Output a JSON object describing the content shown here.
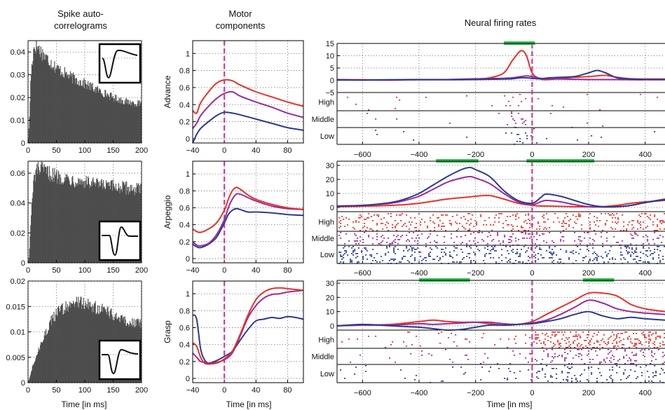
{
  "column_titles": {
    "autocorr": [
      "Spike auto-",
      "correlograms"
    ],
    "motor": [
      "Motor",
      "components"
    ],
    "neural": "Neural firing rates"
  },
  "row_labels": [
    "Advance",
    "Arpeggio",
    "Grasp"
  ],
  "raster_labels": [
    "High",
    "Middle",
    "Low"
  ],
  "colors": {
    "high": "#e8302a",
    "middle": "#9b2a9c",
    "low": "#2b3a8f",
    "bar": "#4d4d4d",
    "marker": "#cf3e9c",
    "significance": "#2fbf4f"
  },
  "chart_data": [
    {
      "type": "bar",
      "panel": "autocorrelogram-advance",
      "xlabel": "",
      "ylim": [
        0,
        0.045
      ],
      "xlim": [
        0,
        200
      ],
      "xticks": [
        "0",
        "50",
        "100",
        "150",
        "200"
      ],
      "yticks": [
        "0",
        "0.01",
        "0.02",
        "0.03",
        "0.04"
      ],
      "envelope_x": [
        0,
        2,
        5,
        10,
        15,
        20,
        30,
        50,
        75,
        100,
        125,
        150,
        175,
        200
      ],
      "envelope_y": [
        0.0,
        0.008,
        0.03,
        0.042,
        0.043,
        0.041,
        0.038,
        0.033,
        0.029,
        0.026,
        0.023,
        0.02,
        0.018,
        0.017
      ]
    },
    {
      "type": "bar",
      "panel": "autocorrelogram-arpeggio",
      "xlabel": "",
      "ylim": [
        0,
        0.068
      ],
      "xlim": [
        0,
        200
      ],
      "xticks": [
        "0",
        "50",
        "100",
        "150",
        "200"
      ],
      "yticks": [
        "0",
        "0.02",
        "0.04",
        "0.06"
      ],
      "envelope_x": [
        0,
        2,
        5,
        10,
        15,
        20,
        30,
        50,
        75,
        100,
        125,
        150,
        175,
        200
      ],
      "envelope_y": [
        0.0,
        0.005,
        0.03,
        0.055,
        0.062,
        0.063,
        0.061,
        0.058,
        0.056,
        0.054,
        0.052,
        0.051,
        0.05,
        0.049
      ]
    },
    {
      "type": "bar",
      "panel": "autocorrelogram-grasp",
      "xlabel": "Time [in ms]",
      "ylim": [
        0,
        0.02
      ],
      "xlim": [
        0,
        200
      ],
      "xticks": [
        "0",
        "50",
        "100",
        "150",
        "200"
      ],
      "yticks": [
        "0",
        "0.005",
        "0.01",
        "0.015",
        "0.02"
      ],
      "envelope_x": [
        0,
        5,
        10,
        20,
        30,
        40,
        50,
        60,
        75,
        90,
        100,
        125,
        150,
        175,
        200
      ],
      "envelope_y": [
        0.0,
        0.002,
        0.004,
        0.007,
        0.0095,
        0.012,
        0.0135,
        0.0145,
        0.0155,
        0.0158,
        0.0155,
        0.0145,
        0.0135,
        0.012,
        0.0115
      ]
    },
    {
      "type": "line",
      "panel": "motor-advance",
      "ylabel": "Advance",
      "xlabel": "",
      "xlim": [
        -40,
        100
      ],
      "ylim": [
        -0.05,
        1.15
      ],
      "xticks": [
        "-40",
        "0",
        "40",
        "80"
      ],
      "yticks": [
        "0",
        "0.2",
        "0.4",
        "0.6",
        "0.8",
        "1"
      ],
      "x": [
        -40,
        -35,
        -30,
        -20,
        -10,
        0,
        10,
        20,
        40,
        60,
        80,
        100
      ],
      "series": [
        {
          "name": "High",
          "values": [
            0.33,
            0.3,
            0.42,
            0.55,
            0.65,
            0.69,
            0.68,
            0.63,
            0.55,
            0.49,
            0.43,
            0.38
          ]
        },
        {
          "name": "Middle",
          "values": [
            0.12,
            0.18,
            0.27,
            0.38,
            0.47,
            0.53,
            0.55,
            0.5,
            0.43,
            0.37,
            0.3,
            0.25
          ]
        },
        {
          "name": "Low",
          "values": [
            -0.08,
            0.05,
            0.12,
            0.2,
            0.27,
            0.31,
            0.3,
            0.28,
            0.23,
            0.18,
            0.13,
            0.1
          ]
        }
      ]
    },
    {
      "type": "line",
      "panel": "motor-arpeggio",
      "ylabel": "Arpeggio",
      "xlabel": "",
      "xlim": [
        -40,
        100
      ],
      "ylim": [
        -0.05,
        1.15
      ],
      "xticks": [
        "-40",
        "0",
        "40",
        "80"
      ],
      "yticks": [
        "0",
        "0.2",
        "0.4",
        "0.6",
        "0.8",
        "1"
      ],
      "x": [
        -40,
        -35,
        -30,
        -20,
        -10,
        0,
        5,
        10,
        15,
        20,
        30,
        40,
        60,
        80,
        100
      ],
      "series": [
        {
          "name": "High",
          "values": [
            0.35,
            0.32,
            0.31,
            0.35,
            0.42,
            0.57,
            0.7,
            0.8,
            0.84,
            0.82,
            0.75,
            0.7,
            0.64,
            0.6,
            0.58
          ]
        },
        {
          "name": "Middle",
          "values": [
            0.2,
            0.16,
            0.15,
            0.18,
            0.28,
            0.46,
            0.6,
            0.7,
            0.76,
            0.76,
            0.72,
            0.68,
            0.62,
            0.59,
            0.58
          ]
        },
        {
          "name": "Low",
          "values": [
            0.17,
            0.14,
            0.13,
            0.17,
            0.25,
            0.42,
            0.52,
            0.57,
            0.59,
            0.58,
            0.55,
            0.55,
            0.54,
            0.52,
            0.51
          ]
        }
      ]
    },
    {
      "type": "line",
      "panel": "motor-grasp",
      "ylabel": "Grasp",
      "xlabel": "Time [in ms]",
      "xlim": [
        -40,
        100
      ],
      "ylim": [
        -0.05,
        1.15
      ],
      "xticks": [
        "-40",
        "0",
        "40",
        "80"
      ],
      "yticks": [
        "0",
        "0.2",
        "0.4",
        "0.6",
        "0.8",
        "1"
      ],
      "x": [
        -40,
        -35,
        -30,
        -25,
        -20,
        -10,
        0,
        10,
        20,
        30,
        40,
        50,
        60,
        70,
        80,
        90,
        100
      ],
      "series": [
        {
          "name": "High",
          "values": [
            0.42,
            0.38,
            0.25,
            0.18,
            0.17,
            0.18,
            0.23,
            0.32,
            0.52,
            0.75,
            0.93,
            1.02,
            1.06,
            1.07,
            1.06,
            1.05,
            1.04
          ]
        },
        {
          "name": "Middle",
          "values": [
            0.3,
            0.25,
            0.2,
            0.19,
            0.17,
            0.19,
            0.22,
            0.3,
            0.5,
            0.72,
            0.86,
            0.95,
            0.99,
            1.0,
            1.02,
            1.03,
            1.04
          ]
        },
        {
          "name": "Low",
          "values": [
            0.75,
            0.7,
            0.35,
            0.22,
            0.18,
            0.21,
            0.26,
            0.32,
            0.45,
            0.58,
            0.68,
            0.7,
            0.72,
            0.71,
            0.73,
            0.72,
            0.7
          ]
        }
      ]
    },
    {
      "type": "line",
      "panel": "firing-advance",
      "xlabel": "",
      "xlim": [
        -690,
        470
      ],
      "ylim": [
        -5,
        15
      ],
      "xticks": [
        "-600",
        "-400",
        "-200",
        "0",
        "200",
        "400"
      ],
      "yticks": [
        "-5",
        "0",
        "5",
        "10",
        "15"
      ],
      "x": [
        -690,
        -600,
        -500,
        -400,
        -300,
        -200,
        -150,
        -100,
        -70,
        -40,
        -20,
        0,
        30,
        60,
        100,
        150,
        200,
        230,
        260,
        300,
        350,
        400,
        470
      ],
      "series": [
        {
          "name": "High",
          "values": [
            0.3,
            0.2,
            0.1,
            0.2,
            0.3,
            0.5,
            1.0,
            3.0,
            8.0,
            12.0,
            10.0,
            3.0,
            0.5,
            0.3,
            0.8,
            1.2,
            1.5,
            1.8,
            2.0,
            1.2,
            0.6,
            0.5,
            0.5
          ]
        },
        {
          "name": "Middle",
          "values": [
            0.2,
            0.1,
            0.1,
            0.2,
            0.3,
            0.6,
            0.7,
            0.8,
            1.0,
            1.5,
            1.8,
            1.5,
            0.8,
            0.5,
            0.5,
            0.4,
            0.3,
            0.3,
            0.3,
            0.3,
            0.2,
            0.2,
            0.2
          ]
        },
        {
          "name": "Low",
          "values": [
            0.1,
            0.1,
            0.2,
            0.3,
            0.2,
            0.3,
            0.4,
            0.5,
            0.6,
            1.0,
            1.0,
            0.8,
            0.6,
            1.0,
            1.2,
            1.5,
            3.0,
            4.0,
            3.0,
            1.0,
            0.5,
            0.3,
            0.3
          ]
        }
      ],
      "significance_bars": [
        [
          -100,
          10
        ]
      ]
    },
    {
      "type": "line",
      "panel": "firing-arpeggio",
      "xlabel": "",
      "xlim": [
        -690,
        470
      ],
      "ylim": [
        -3,
        33
      ],
      "xticks": [
        "-600",
        "-400",
        "-200",
        "0",
        "200",
        "400"
      ],
      "yticks": [
        "0",
        "10",
        "20",
        "30"
      ],
      "x": [
        -690,
        -600,
        -500,
        -450,
        -400,
        -350,
        -300,
        -250,
        -220,
        -200,
        -150,
        -100,
        -50,
        0,
        30,
        50,
        100,
        150,
        200,
        250,
        300,
        350,
        400,
        470
      ],
      "series": [
        {
          "name": "High",
          "values": [
            0.5,
            0.8,
            1.5,
            2.0,
            3.0,
            4.5,
            6.0,
            7.0,
            7.5,
            8.0,
            8.5,
            6.0,
            3.0,
            1.5,
            1.0,
            1.0,
            0.8,
            0.5,
            0.5,
            0.6,
            1.5,
            3.0,
            4.0,
            5.0
          ]
        },
        {
          "name": "Middle",
          "values": [
            1.0,
            1.5,
            3.0,
            5.0,
            8.0,
            13.0,
            18.0,
            21.0,
            22.0,
            21.0,
            17.0,
            10.0,
            4.0,
            2.0,
            4.0,
            5.0,
            4.0,
            2.0,
            0.5,
            0.3,
            0.5,
            1.5,
            3.5,
            6.0
          ]
        },
        {
          "name": "Low",
          "values": [
            1.0,
            1.5,
            3.5,
            6.0,
            10.0,
            16.0,
            22.0,
            27.0,
            28.5,
            27.0,
            22.0,
            12.0,
            5.0,
            3.0,
            7.0,
            9.5,
            8.0,
            5.0,
            2.0,
            0.5,
            0.5,
            1.5,
            3.5,
            5.5
          ]
        }
      ],
      "significance_bars": [
        [
          -340,
          -190
        ],
        [
          -20,
          220
        ]
      ]
    },
    {
      "type": "line",
      "panel": "firing-grasp",
      "xlabel": "Time [in ms]",
      "xlim": [
        -690,
        470
      ],
      "ylim": [
        -3,
        32
      ],
      "xticks": [
        "-600",
        "-400",
        "-200",
        "0",
        "200",
        "400"
      ],
      "yticks": [
        "0",
        "10",
        "20",
        "30"
      ],
      "x": [
        -690,
        -600,
        -500,
        -400,
        -350,
        -300,
        -250,
        -200,
        -150,
        -100,
        -50,
        0,
        50,
        100,
        150,
        200,
        250,
        300,
        350,
        400,
        470
      ],
      "series": [
        {
          "name": "High",
          "values": [
            0.0,
            0.5,
            1.0,
            3.0,
            4.0,
            3.0,
            2.5,
            2.5,
            1.5,
            0.5,
            1.0,
            3.0,
            8.0,
            13.0,
            18.0,
            23.0,
            23.0,
            21.0,
            15.0,
            12.0,
            10.0
          ]
        },
        {
          "name": "Middle",
          "values": [
            0.0,
            0.5,
            0.5,
            1.5,
            1.0,
            1.5,
            2.0,
            2.5,
            2.5,
            1.5,
            1.0,
            2.0,
            4.0,
            8.0,
            13.0,
            18.0,
            16.0,
            12.0,
            10.0,
            9.0,
            8.0
          ]
        },
        {
          "name": "Low",
          "values": [
            0.0,
            1.0,
            0.0,
            -1.0,
            -2.0,
            -3.0,
            -2.5,
            -1.0,
            0.5,
            0.5,
            1.0,
            1.5,
            3.0,
            5.0,
            8.0,
            10.0,
            7.0,
            5.0,
            6.0,
            5.0,
            4.0
          ]
        }
      ],
      "significance_bars": [
        [
          -400,
          -220
        ],
        [
          180,
          290
        ]
      ]
    }
  ]
}
